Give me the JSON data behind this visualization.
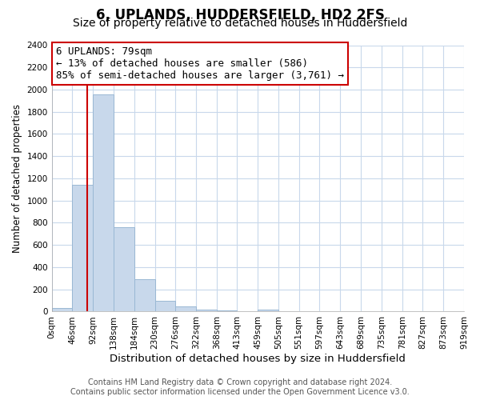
{
  "title": "6, UPLANDS, HUDDERSFIELD, HD2 2FS",
  "subtitle": "Size of property relative to detached houses in Huddersfield",
  "xlabel": "Distribution of detached houses by size in Huddersfield",
  "ylabel": "Number of detached properties",
  "bin_edges": [
    0,
    46,
    92,
    138,
    184,
    230,
    276,
    322,
    368,
    413,
    459,
    505,
    551,
    597,
    643,
    689,
    735,
    781,
    827,
    873,
    919
  ],
  "bar_heights": [
    35,
    1140,
    1960,
    760,
    295,
    100,
    50,
    20,
    10,
    5,
    20,
    0,
    0,
    0,
    0,
    0,
    0,
    0,
    0,
    0
  ],
  "bar_color": "#c8d8eb",
  "bar_edgecolor": "#9ab8d4",
  "property_size": 79,
  "property_line_color": "#cc0000",
  "annotation_line1": "6 UPLANDS: 79sqm",
  "annotation_line2": "← 13% of detached houses are smaller (586)",
  "annotation_line3": "85% of semi-detached houses are larger (3,761) →",
  "annotation_box_color": "#ffffff",
  "annotation_box_edgecolor": "#cc0000",
  "ylim": [
    0,
    2400
  ],
  "yticks": [
    0,
    200,
    400,
    600,
    800,
    1000,
    1200,
    1400,
    1600,
    1800,
    2000,
    2200,
    2400
  ],
  "tick_labels": [
    "0sqm",
    "46sqm",
    "92sqm",
    "138sqm",
    "184sqm",
    "230sqm",
    "276sqm",
    "322sqm",
    "368sqm",
    "413sqm",
    "459sqm",
    "505sqm",
    "551sqm",
    "597sqm",
    "643sqm",
    "689sqm",
    "735sqm",
    "781sqm",
    "827sqm",
    "873sqm",
    "919sqm"
  ],
  "footer_line1": "Contains HM Land Registry data © Crown copyright and database right 2024.",
  "footer_line2": "Contains public sector information licensed under the Open Government Licence v3.0.",
  "figure_background_color": "#ffffff",
  "plot_background_color": "#ffffff",
  "grid_color": "#c8d8eb",
  "title_fontsize": 12,
  "subtitle_fontsize": 10,
  "xlabel_fontsize": 9.5,
  "ylabel_fontsize": 8.5,
  "tick_fontsize": 7.5,
  "annotation_fontsize": 9,
  "footer_fontsize": 7
}
